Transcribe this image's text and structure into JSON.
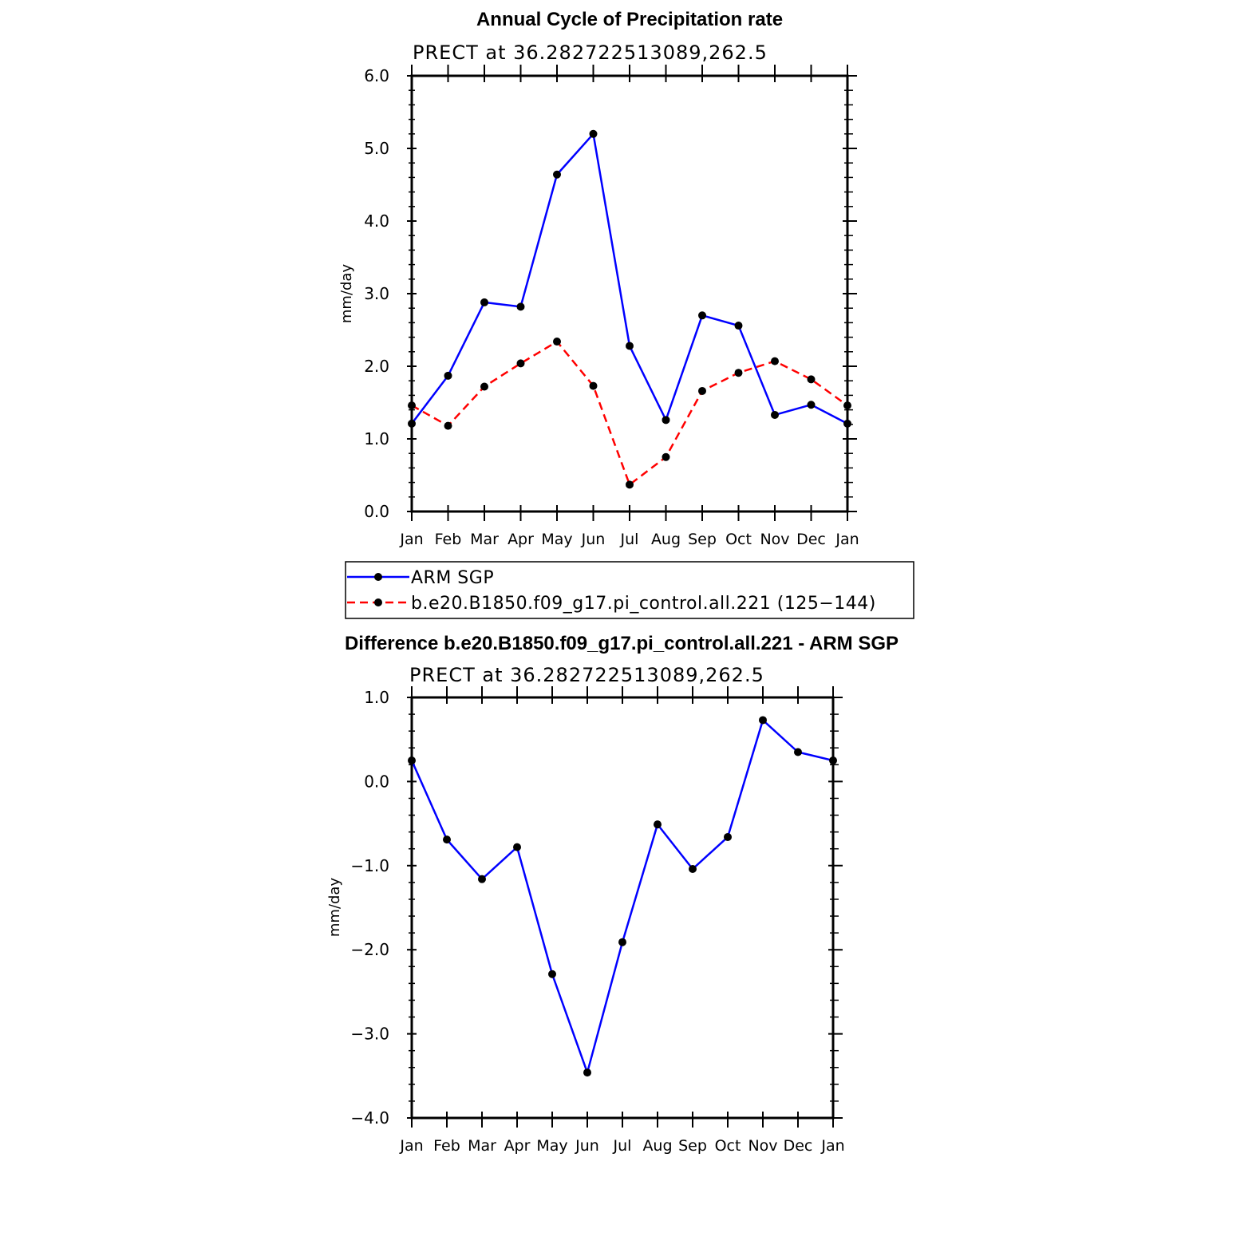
{
  "chart_data": [
    {
      "type": "line",
      "title": "Annual Cycle of Precipitation rate",
      "subtitle": "PRECT at 36.282722513089,262.5",
      "ylabel": "mm/day",
      "ylim": [
        0,
        6
      ],
      "yticks": [
        "0.0",
        "1.0",
        "2.0",
        "3.0",
        "4.0",
        "5.0",
        "6.0"
      ],
      "categories": [
        "Jan",
        "Feb",
        "Mar",
        "Apr",
        "May",
        "Jun",
        "Jul",
        "Aug",
        "Sep",
        "Oct",
        "Nov",
        "Dec",
        "Jan"
      ],
      "series": [
        {
          "name": "ARM SGP",
          "color": "#0000ff",
          "dash": "solid",
          "values": [
            1.21,
            1.87,
            2.88,
            2.82,
            4.64,
            5.2,
            2.28,
            1.26,
            2.7,
            2.56,
            1.33,
            1.47,
            1.21
          ]
        },
        {
          "name": "b.e20.B1850.f09_g17.pi_control.all.221 (125−144)",
          "color": "#ff0000",
          "dash": "dashed",
          "values": [
            1.46,
            1.18,
            1.72,
            2.04,
            2.34,
            1.73,
            0.37,
            0.75,
            1.66,
            1.91,
            2.07,
            1.82,
            1.46
          ]
        }
      ]
    },
    {
      "type": "line",
      "title": "Difference b.e20.B1850.f09_g17.pi_control.all.221 - ARM SGP",
      "subtitle": "PRECT at 36.282722513089,262.5",
      "ylabel": "mm/day",
      "ylim": [
        -4,
        1
      ],
      "yticks": [
        "−4.0",
        "−3.0",
        "−2.0",
        "−1.0",
        "0.0",
        "1.0"
      ],
      "categories": [
        "Jan",
        "Feb",
        "Mar",
        "Apr",
        "May",
        "Jun",
        "Jul",
        "Aug",
        "Sep",
        "Oct",
        "Nov",
        "Dec",
        "Jan"
      ],
      "series": [
        {
          "color": "#0000ff",
          "dash": "solid",
          "values": [
            0.25,
            -0.69,
            -1.16,
            -0.78,
            -2.29,
            -3.46,
            -1.91,
            -0.51,
            -1.04,
            -0.66,
            0.73,
            0.35,
            0.25
          ]
        }
      ]
    }
  ]
}
